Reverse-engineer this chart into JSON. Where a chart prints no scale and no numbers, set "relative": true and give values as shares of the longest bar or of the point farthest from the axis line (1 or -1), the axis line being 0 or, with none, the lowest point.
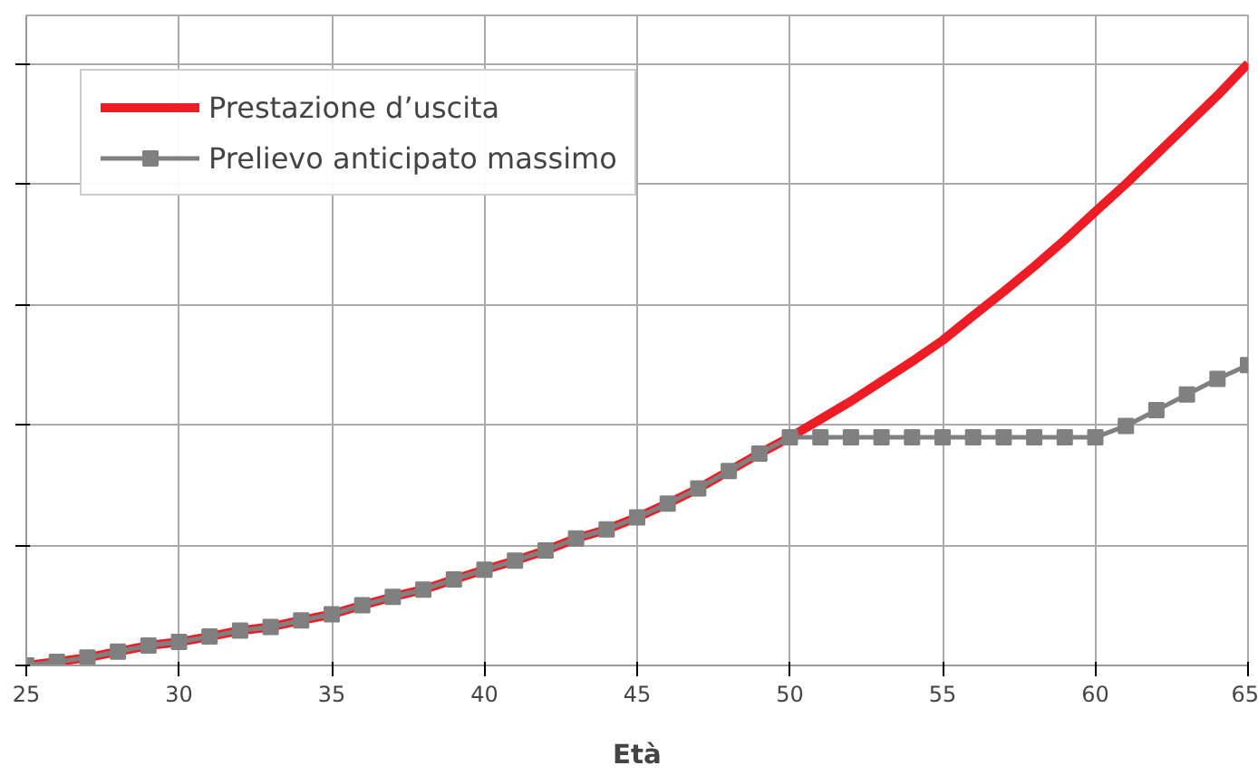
{
  "chart_data": {
    "type": "line",
    "xlabel": "Età",
    "relative": true,
    "x": [
      25,
      26,
      27,
      28,
      29,
      30,
      31,
      32,
      33,
      34,
      35,
      36,
      37,
      38,
      39,
      40,
      41,
      42,
      43,
      44,
      45,
      46,
      47,
      48,
      49,
      50,
      51,
      52,
      53,
      54,
      55,
      56,
      57,
      58,
      59,
      60,
      61,
      62,
      63,
      64,
      65
    ],
    "xlim": [
      25,
      65
    ],
    "xticks": [
      25,
      30,
      35,
      40,
      45,
      50,
      55,
      60,
      65
    ],
    "grid": true,
    "legend": "top left",
    "tick_labels": "x",
    "series": [
      {
        "name": "Prestazione d’uscita",
        "color": "#ee1c25",
        "marker": "none",
        "values": [
          0,
          0.006,
          0.013,
          0.023,
          0.033,
          0.039,
          0.048,
          0.058,
          0.064,
          0.075,
          0.085,
          0.1,
          0.114,
          0.126,
          0.143,
          0.159,
          0.174,
          0.191,
          0.211,
          0.226,
          0.246,
          0.269,
          0.294,
          0.323,
          0.352,
          0.379,
          0.409,
          0.439,
          0.472,
          0.505,
          0.54,
          0.581,
          0.621,
          0.663,
          0.707,
          0.754,
          0.8,
          0.849,
          0.898,
          0.947,
          1
        ]
      },
      {
        "name": "Prelievo anticipato massimo",
        "color": "#808080",
        "marker": "square",
        "values": [
          0,
          0.006,
          0.013,
          0.023,
          0.033,
          0.039,
          0.048,
          0.058,
          0.064,
          0.075,
          0.085,
          0.1,
          0.114,
          0.126,
          0.143,
          0.159,
          0.174,
          0.191,
          0.211,
          0.226,
          0.246,
          0.269,
          0.294,
          0.323,
          0.352,
          0.379,
          0.379,
          0.379,
          0.379,
          0.379,
          0.379,
          0.379,
          0.379,
          0.379,
          0.379,
          0.379,
          0.398,
          0.424,
          0.45,
          0.476,
          0.499
        ]
      }
    ]
  }
}
